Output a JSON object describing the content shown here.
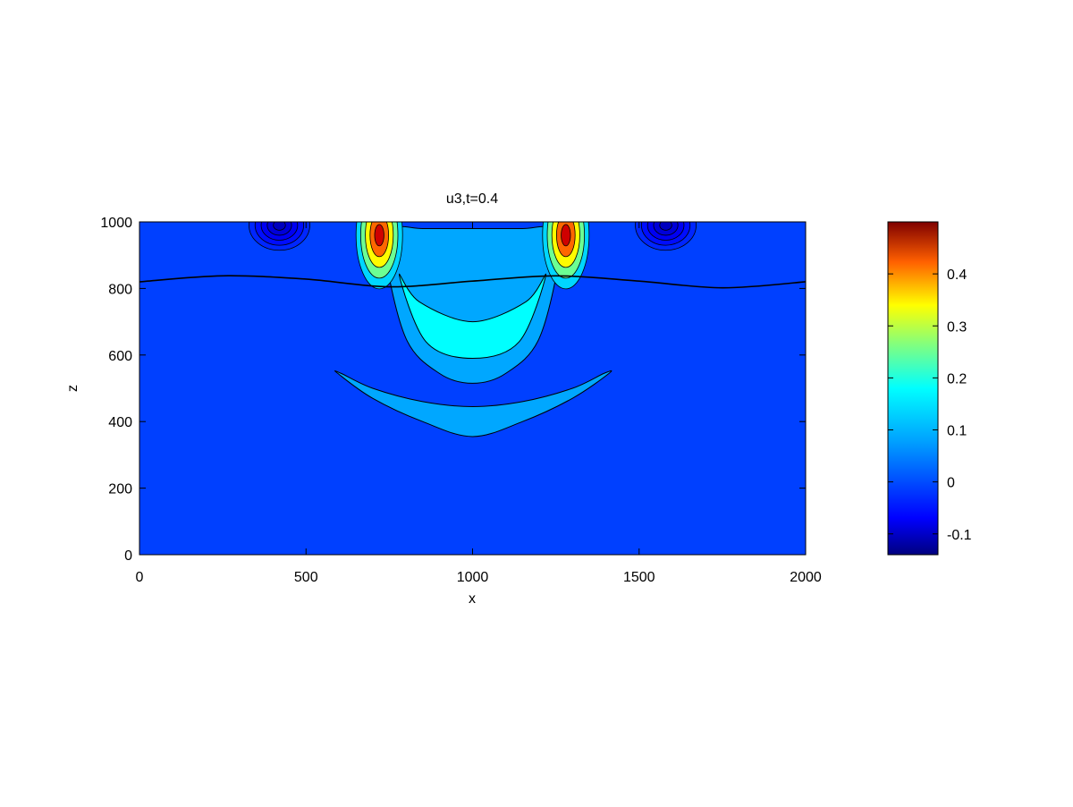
{
  "chart_data": {
    "type": "heatmap",
    "subtype": "filled-contour",
    "title": "u3,t=0.4",
    "xlabel": "x",
    "ylabel": "z",
    "xlim": [
      0,
      2000
    ],
    "ylim": [
      0,
      1000
    ],
    "xticks": [
      0,
      500,
      1000,
      1500,
      2000
    ],
    "yticks": [
      0,
      200,
      400,
      600,
      800,
      1000
    ],
    "grid": false,
    "colorbar": {
      "colormap": "jet",
      "range": [
        -0.14,
        0.5
      ],
      "ticks": [
        -0.1,
        0,
        0.1,
        0.2,
        0.3,
        0.4
      ],
      "placement": "right"
    },
    "background_value": -0.02,
    "interface_curve": {
      "description_values": "sinusoidal boundary",
      "x": [
        0,
        250,
        500,
        750,
        1000,
        1250,
        1500,
        1750,
        2000
      ],
      "z": [
        820,
        838,
        828,
        805,
        822,
        838,
        822,
        802,
        820
      ]
    },
    "regions": [
      {
        "feature": "outer lower arc",
        "level": 0.045,
        "x": [
          595,
          700,
          850,
          1000,
          1150,
          1300,
          1410,
          1395,
          1300,
          1150,
          1000,
          850,
          700,
          605
        ],
        "z": [
          545,
          470,
          400,
          355,
          400,
          470,
          545,
          545,
          500,
          460,
          445,
          460,
          500,
          545
        ]
      },
      {
        "feature": "central bowl",
        "level": 0.045,
        "x": [
          740,
          800,
          900,
          1000,
          1100,
          1200,
          1260,
          1230,
          1150,
          1000,
          850,
          770
        ],
        "z": [
          900,
          650,
          545,
          515,
          545,
          650,
          900,
          980,
          980,
          980,
          980,
          980
        ]
      },
      {
        "feature": "inner bowl",
        "level": 0.1,
        "x": [
          780,
          860,
          1000,
          1140,
          1220,
          1160,
          1000,
          840
        ],
        "z": [
          840,
          640,
          590,
          640,
          840,
          760,
          700,
          760
        ]
      }
    ],
    "hotspots": [
      {
        "x": 720,
        "z": 960,
        "value": 0.45
      },
      {
        "x": 1280,
        "z": 960,
        "value": 0.45
      },
      {
        "x": 420,
        "z": 990,
        "value": -0.1
      },
      {
        "x": 1580,
        "z": 990,
        "value": -0.1
      }
    ]
  }
}
